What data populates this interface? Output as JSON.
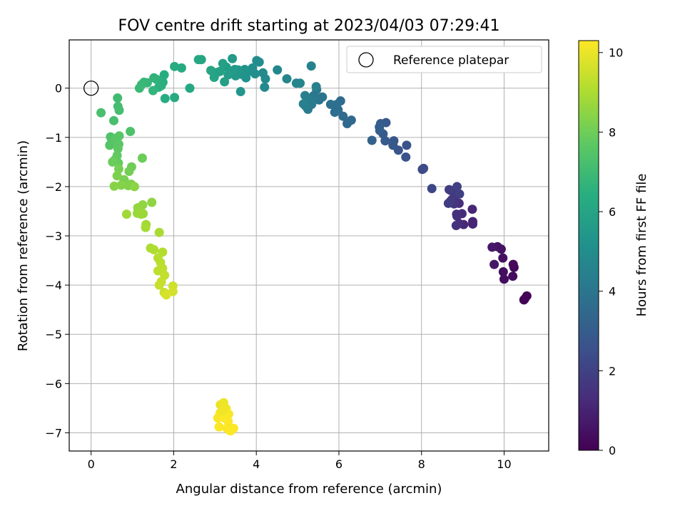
{
  "chart_data": {
    "type": "scatter",
    "title": "FOV centre drift starting at 2023/04/03 07:29:41",
    "xlabel": "Angular distance from reference (arcmin)",
    "ylabel": "Rotation from reference (arcmin)",
    "xlim": [
      -0.53,
      11.08
    ],
    "ylim": [
      -7.37,
      0.98
    ],
    "xticks": [
      0,
      2,
      4,
      6,
      8,
      10
    ],
    "yticks": [
      0,
      -1,
      -2,
      -3,
      -4,
      -5,
      -6,
      -7
    ],
    "xtick_labels": [
      "0",
      "2",
      "4",
      "6",
      "8",
      "10"
    ],
    "ytick_labels": [
      "0",
      "−1",
      "−2",
      "−3",
      "−4",
      "−5",
      "−6",
      "−7"
    ],
    "grid": true,
    "legend": {
      "position": "top-right",
      "entries": [
        "Reference platepar"
      ]
    },
    "reference_point": {
      "x": 0,
      "y": 0
    },
    "colorbar": {
      "label": "Hours from first FF file",
      "range": [
        0,
        10.3
      ],
      "ticks": [
        0,
        2,
        4,
        6,
        8,
        10
      ],
      "tick_labels": [
        "0",
        "2",
        "4",
        "6",
        "8",
        "10"
      ],
      "colormap": "viridis"
    },
    "series": [
      {
        "points": [
          [
            10.5,
            -4.28,
            0.0
          ],
          [
            10.55,
            -4.22,
            0.05
          ],
          [
            10.48,
            -4.3,
            0.1
          ],
          [
            10.24,
            -3.64,
            0.2
          ],
          [
            10.22,
            -3.58,
            0.25
          ],
          [
            10.21,
            -3.82,
            0.3
          ],
          [
            10.0,
            -3.88,
            0.35
          ],
          [
            9.98,
            -3.73,
            0.4
          ],
          [
            9.97,
            -3.45,
            0.45
          ],
          [
            9.93,
            -3.27,
            0.5
          ],
          [
            9.84,
            -3.22,
            0.55
          ],
          [
            9.76,
            -3.58,
            0.6
          ],
          [
            9.71,
            -3.23,
            0.65
          ],
          [
            9.24,
            -2.71,
            1.0
          ],
          [
            9.24,
            -2.76,
            1.05
          ],
          [
            9.23,
            -2.46,
            1.1
          ],
          [
            9.02,
            -2.77,
            1.15
          ],
          [
            8.98,
            -2.55,
            1.2
          ],
          [
            8.91,
            -2.75,
            1.25
          ],
          [
            8.91,
            -2.34,
            1.3
          ],
          [
            8.86,
            -2.6,
            1.35
          ],
          [
            8.85,
            -2.56,
            1.4
          ],
          [
            8.84,
            -2.79,
            1.45
          ],
          [
            8.81,
            -2.2,
            1.5
          ],
          [
            8.79,
            -2.35,
            1.55
          ],
          [
            8.77,
            -2.1,
            1.6
          ],
          [
            8.74,
            -2.26,
            1.65
          ],
          [
            8.71,
            -2.08,
            1.7
          ],
          [
            8.7,
            -2.3,
            1.75
          ],
          [
            8.67,
            -2.06,
            1.8
          ],
          [
            8.65,
            -2.34,
            1.85
          ],
          [
            8.92,
            -2.15,
            1.9
          ],
          [
            8.86,
            -2.0,
            1.95
          ],
          [
            8.25,
            -2.04,
            2.2
          ],
          [
            8.02,
            -1.65,
            2.3
          ],
          [
            8.05,
            -1.63,
            2.35
          ],
          [
            7.64,
            -1.16,
            2.6
          ],
          [
            7.62,
            -1.4,
            2.65
          ],
          [
            7.44,
            -1.26,
            2.7
          ],
          [
            7.33,
            -1.07,
            2.75
          ],
          [
            7.31,
            -1.16,
            2.8
          ],
          [
            7.14,
            -0.7,
            2.85
          ],
          [
            7.12,
            -1.07,
            2.9
          ],
          [
            7.07,
            -0.93,
            2.95
          ],
          [
            7.01,
            -0.72,
            3.0
          ],
          [
            6.99,
            -0.86,
            3.05
          ],
          [
            6.98,
            -0.79,
            3.1
          ],
          [
            6.8,
            -1.06,
            3.2
          ],
          [
            6.3,
            -0.65,
            3.45
          ],
          [
            6.2,
            -0.72,
            3.5
          ],
          [
            6.1,
            -0.57,
            3.55
          ],
          [
            6.04,
            -0.26,
            3.6
          ],
          [
            5.98,
            -0.44,
            3.65
          ],
          [
            5.95,
            -0.33,
            3.7
          ],
          [
            5.9,
            -0.49,
            3.75
          ],
          [
            5.8,
            -0.33,
            3.8
          ],
          [
            5.6,
            -0.18,
            3.9
          ],
          [
            5.52,
            -0.24,
            3.95
          ],
          [
            5.46,
            -0.03,
            4.0
          ],
          [
            5.44,
            -0.19,
            4.05
          ],
          [
            5.39,
            -0.15,
            4.1
          ],
          [
            5.34,
            -0.33,
            4.15
          ],
          [
            5.31,
            -0.23,
            4.2
          ],
          [
            5.25,
            -0.43,
            4.25
          ],
          [
            5.23,
            -0.21,
            4.3
          ],
          [
            5.19,
            -0.36,
            4.35
          ],
          [
            5.18,
            -0.15,
            4.4
          ],
          [
            5.14,
            -0.32,
            4.45
          ],
          [
            5.45,
            0.03,
            4.5
          ],
          [
            5.33,
            0.45,
            4.55
          ],
          [
            5.06,
            0.1,
            4.6
          ],
          [
            4.97,
            0.1,
            4.65
          ],
          [
            4.74,
            0.19,
            4.7
          ],
          [
            4.51,
            0.37,
            4.75
          ],
          [
            4.2,
            0.02,
            4.8
          ],
          [
            4.22,
            0.19,
            4.85
          ],
          [
            4.16,
            0.31,
            4.9
          ],
          [
            4.07,
            0.53,
            4.95
          ],
          [
            4.01,
            0.56,
            5.0
          ],
          [
            3.97,
            0.29,
            5.05
          ],
          [
            3.91,
            0.41,
            5.1
          ],
          [
            3.78,
            0.32,
            5.15
          ],
          [
            3.75,
            0.21,
            5.2
          ],
          [
            3.72,
            0.38,
            5.25
          ],
          [
            3.65,
            0.28,
            5.3
          ],
          [
            3.62,
            -0.07,
            5.35
          ],
          [
            3.56,
            0.37,
            5.4
          ],
          [
            3.5,
            0.25,
            5.45
          ],
          [
            3.48,
            0.38,
            5.5
          ],
          [
            3.42,
            0.6,
            5.55
          ],
          [
            3.39,
            0.35,
            5.6
          ],
          [
            3.32,
            0.27,
            5.65
          ],
          [
            3.27,
            0.43,
            5.7
          ],
          [
            3.23,
            0.13,
            5.75
          ],
          [
            3.19,
            0.5,
            5.8
          ],
          [
            3.12,
            0.34,
            5.85
          ],
          [
            3.05,
            0.32,
            5.9
          ],
          [
            2.98,
            0.22,
            5.95
          ],
          [
            2.9,
            0.36,
            6.0
          ],
          [
            2.67,
            0.58,
            6.05
          ],
          [
            2.6,
            0.58,
            6.1
          ],
          [
            2.39,
            0.0,
            6.15
          ],
          [
            2.19,
            0.41,
            6.2
          ],
          [
            2.02,
            -0.19,
            6.25
          ],
          [
            2.02,
            0.44,
            6.3
          ],
          [
            1.79,
            -0.21,
            6.35
          ],
          [
            1.77,
            0.27,
            6.4
          ],
          [
            1.74,
            0.12,
            6.45
          ],
          [
            1.7,
            0.05,
            6.5
          ],
          [
            1.64,
            0.02,
            6.55
          ],
          [
            1.58,
            0.18,
            6.6
          ],
          [
            1.52,
            0.21,
            6.65
          ],
          [
            1.5,
            -0.05,
            6.7
          ],
          [
            1.36,
            0.11,
            6.75
          ],
          [
            1.28,
            0.12,
            6.8
          ],
          [
            1.22,
            0.07,
            6.85
          ],
          [
            1.17,
            0.0,
            6.9
          ],
          [
            0.64,
            -0.2,
            7.05
          ],
          [
            0.65,
            -0.37,
            7.1
          ],
          [
            0.68,
            -0.45,
            7.15
          ],
          [
            0.55,
            -0.66,
            7.2
          ],
          [
            0.24,
            -0.5,
            7.25
          ],
          [
            0.95,
            -0.88,
            7.35
          ],
          [
            0.47,
            -0.99,
            7.4
          ],
          [
            0.5,
            -1.08,
            7.45
          ],
          [
            0.45,
            -1.16,
            7.5
          ],
          [
            0.58,
            -1.02,
            7.55
          ],
          [
            0.68,
            -0.97,
            7.6
          ],
          [
            0.67,
            -1.14,
            7.65
          ],
          [
            0.65,
            -1.23,
            7.7
          ],
          [
            0.63,
            -1.37,
            7.75
          ],
          [
            0.57,
            -1.46,
            7.8
          ],
          [
            0.66,
            -1.52,
            7.85
          ],
          [
            0.52,
            -1.5,
            7.9
          ],
          [
            1.24,
            -1.42,
            7.95
          ],
          [
            0.98,
            -1.6,
            8.0
          ],
          [
            0.92,
            -1.69,
            8.05
          ],
          [
            0.67,
            -1.64,
            8.1
          ],
          [
            0.8,
            -1.86,
            8.15
          ],
          [
            0.63,
            -1.78,
            8.2
          ],
          [
            0.97,
            -1.95,
            8.25
          ],
          [
            0.9,
            -1.98,
            8.3
          ],
          [
            0.73,
            -1.97,
            8.35
          ],
          [
            0.56,
            -1.99,
            8.4
          ],
          [
            1.05,
            -2.0,
            8.45
          ],
          [
            1.47,
            -2.32,
            8.5
          ],
          [
            1.25,
            -2.37,
            8.55
          ],
          [
            1.13,
            -2.43,
            8.6
          ],
          [
            1.12,
            -2.54,
            8.65
          ],
          [
            1.26,
            -2.55,
            8.7
          ],
          [
            1.21,
            -2.56,
            8.75
          ],
          [
            0.86,
            -2.56,
            8.8
          ],
          [
            1.33,
            -2.77,
            8.85
          ],
          [
            1.32,
            -2.83,
            8.9
          ],
          [
            1.65,
            -2.93,
            8.95
          ],
          [
            1.44,
            -3.25,
            9.0
          ],
          [
            1.52,
            -3.28,
            9.05
          ],
          [
            1.73,
            -3.33,
            9.1
          ],
          [
            1.62,
            -3.45,
            9.15
          ],
          [
            1.68,
            -3.54,
            9.2
          ],
          [
            1.62,
            -3.71,
            9.25
          ],
          [
            1.73,
            -3.66,
            9.3
          ],
          [
            1.78,
            -3.8,
            9.35
          ],
          [
            1.7,
            -3.93,
            9.4
          ],
          [
            1.65,
            -4.0,
            9.45
          ],
          [
            1.77,
            -4.15,
            9.5
          ],
          [
            1.98,
            -4.02,
            9.55
          ],
          [
            1.98,
            -4.13,
            9.6
          ],
          [
            1.82,
            -4.2,
            9.7
          ],
          [
            3.13,
            -6.43,
            10.0
          ],
          [
            3.21,
            -6.39,
            10.05
          ],
          [
            3.27,
            -6.51,
            10.1
          ],
          [
            3.19,
            -6.57,
            10.15
          ],
          [
            3.12,
            -6.6,
            10.2
          ],
          [
            3.07,
            -6.7,
            10.22
          ],
          [
            3.33,
            -6.62,
            10.24
          ],
          [
            3.32,
            -6.77,
            10.26
          ],
          [
            3.1,
            -6.88,
            10.28
          ],
          [
            3.29,
            -6.91,
            10.29
          ],
          [
            3.38,
            -6.96,
            10.3
          ],
          [
            3.45,
            -6.91,
            10.3
          ],
          [
            3.23,
            -6.7,
            10.25
          ],
          [
            3.18,
            -6.55,
            10.1
          ],
          [
            3.35,
            -6.95,
            10.27
          ]
        ]
      }
    ]
  }
}
